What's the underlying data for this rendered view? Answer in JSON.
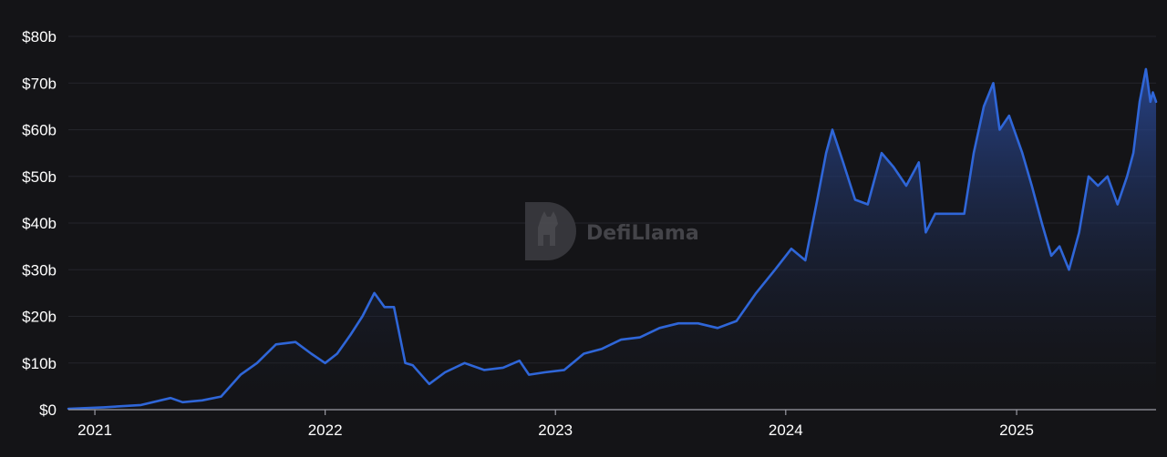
{
  "watermark": {
    "text": "DefiLlama"
  },
  "colors": {
    "background": "#141417",
    "line": "#2f66d8",
    "area_top": "#2a4a9a",
    "area_bottom": "#141417",
    "text": "#ffffff",
    "grid": "#24252b"
  },
  "chart_data": {
    "type": "area",
    "title": "",
    "xlabel": "",
    "ylabel": "",
    "grid": true,
    "ylim": [
      0,
      80
    ],
    "y_ticks": [
      {
        "value": 0,
        "label": "$0"
      },
      {
        "value": 10,
        "label": "$10b"
      },
      {
        "value": 20,
        "label": "$20b"
      },
      {
        "value": 30,
        "label": "$30b"
      },
      {
        "value": 40,
        "label": "$40b"
      },
      {
        "value": 50,
        "label": "$50b"
      },
      {
        "value": 60,
        "label": "$60b"
      },
      {
        "value": 70,
        "label": "$70b"
      },
      {
        "value": 80,
        "label": "$80b"
      }
    ],
    "xlim": [
      "2020-11-20",
      "2025-08-10"
    ],
    "x_ticks": [
      {
        "value": "2021-01-01",
        "label": "2021"
      },
      {
        "value": "2022-01-01",
        "label": "2022"
      },
      {
        "value": "2023-01-01",
        "label": "2023"
      },
      {
        "value": "2024-01-01",
        "label": "2024"
      },
      {
        "value": "2025-01-01",
        "label": "2025"
      }
    ],
    "series": [
      {
        "x": [
          "2020-11-20",
          "2021-01-15",
          "2021-03-15",
          "2021-05-01",
          "2021-05-20",
          "2021-06-20",
          "2021-07-20",
          "2021-08-20",
          "2021-09-15",
          "2021-10-15",
          "2021-11-15",
          "2021-12-10",
          "2022-01-01",
          "2022-01-20",
          "2022-02-10",
          "2022-03-01",
          "2022-03-20",
          "2022-04-05",
          "2022-04-20",
          "2022-05-08",
          "2022-05-20",
          "2022-06-15",
          "2022-07-10",
          "2022-08-10",
          "2022-09-10",
          "2022-10-10",
          "2022-11-05",
          "2022-11-20",
          "2022-12-15",
          "2023-01-15",
          "2023-02-15",
          "2023-03-15",
          "2023-04-15",
          "2023-05-15",
          "2023-06-15",
          "2023-07-15",
          "2023-08-15",
          "2023-09-15",
          "2023-10-15",
          "2023-11-15",
          "2023-12-15",
          "2024-01-10",
          "2024-02-01",
          "2024-02-20",
          "2024-03-05",
          "2024-03-15",
          "2024-04-01",
          "2024-04-20",
          "2024-05-10",
          "2024-06-01",
          "2024-06-20",
          "2024-07-10",
          "2024-07-30",
          "2024-08-10",
          "2024-08-25",
          "2024-09-15",
          "2024-10-10",
          "2024-10-25",
          "2024-11-10",
          "2024-11-25",
          "2024-12-05",
          "2024-12-20",
          "2025-01-10",
          "2025-01-25",
          "2025-02-10",
          "2025-02-25",
          "2025-03-10",
          "2025-03-25",
          "2025-04-10",
          "2025-04-25",
          "2025-05-10",
          "2025-05-25",
          "2025-06-10",
          "2025-06-25",
          "2025-07-05",
          "2025-07-15",
          "2025-07-25",
          "2025-08-01",
          "2025-08-05",
          "2025-08-10"
        ],
        "values": [
          0.2,
          0.5,
          1.0,
          2.5,
          1.6,
          2.0,
          2.8,
          7.5,
          10.0,
          14.0,
          14.5,
          12.0,
          10.0,
          12.0,
          16.0,
          20.0,
          25.0,
          22.0,
          22.0,
          10.0,
          9.5,
          5.5,
          8.0,
          10.0,
          8.5,
          9.0,
          10.5,
          7.5,
          8.0,
          8.5,
          12.0,
          13.0,
          15.0,
          15.5,
          17.5,
          18.5,
          18.5,
          17.5,
          19.0,
          25.0,
          30.0,
          34.5,
          32.0,
          45.0,
          55.0,
          60.0,
          53.0,
          45.0,
          44.0,
          55.0,
          52.0,
          48.0,
          53.0,
          38.0,
          42.0,
          42.0,
          42.0,
          55.0,
          65.0,
          70.0,
          60.0,
          63.0,
          55.0,
          48.0,
          40.0,
          33.0,
          35.0,
          30.0,
          38.0,
          50.0,
          48.0,
          50.0,
          44.0,
          50.0,
          55.0,
          66.0,
          73.0,
          66.0,
          68.0,
          66.0
        ]
      }
    ]
  }
}
